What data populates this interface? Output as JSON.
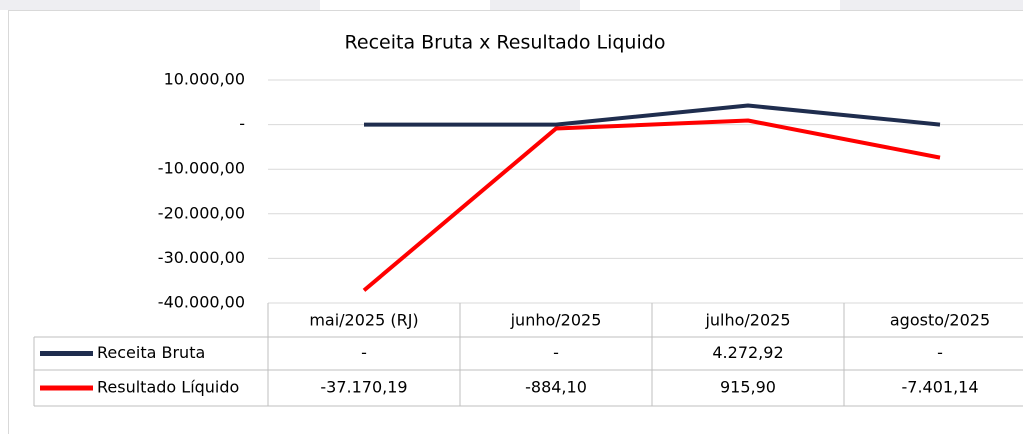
{
  "chart_data": {
    "type": "line",
    "title": "Receita Bruta x Resultado Liquido",
    "categories": [
      "mai/2025 (RJ)",
      "junho/2025",
      "julho/2025",
      "agosto/2025"
    ],
    "series": [
      {
        "name": "Receita Bruta",
        "color": "#1f2d4e",
        "values": [
          0,
          0,
          4272.92,
          0
        ],
        "value_labels": [
          "-",
          "-",
          "4.272,92",
          "-"
        ]
      },
      {
        "name": "Resultado Líquido",
        "color": "#ff0000",
        "values": [
          -37170.19,
          -884.1,
          915.9,
          -7401.14
        ],
        "value_labels": [
          "-37.170,19",
          "-884,10",
          "915,90",
          "-7.401,14"
        ]
      }
    ],
    "ylim": [
      -40000,
      10000
    ],
    "yticks": [
      {
        "value": 10000,
        "label": "10.000,00"
      },
      {
        "value": 0,
        "label": "-"
      },
      {
        "value": -10000,
        "label": "-10.000,00"
      },
      {
        "value": -20000,
        "label": "-20.000,00"
      },
      {
        "value": -30000,
        "label": "-30.000,00"
      },
      {
        "value": -40000,
        "label": "-40.000,00"
      }
    ],
    "grid": true
  }
}
